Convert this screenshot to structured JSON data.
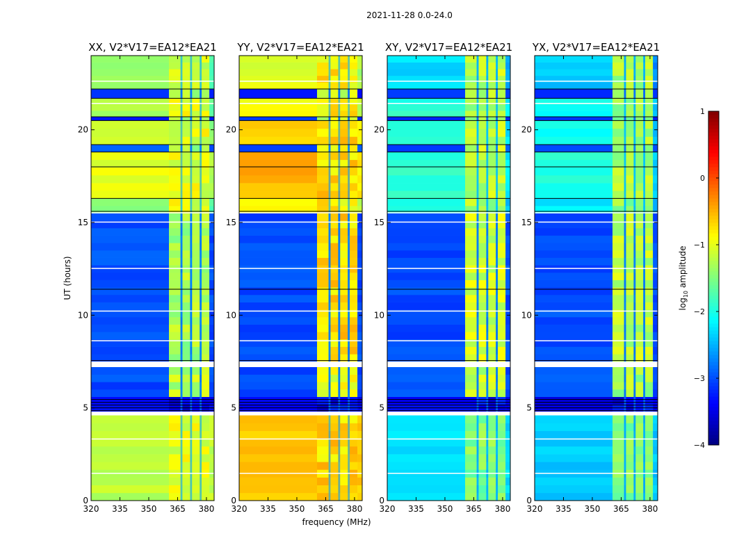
{
  "chart_data": {
    "type": "heatmap",
    "title": "2021-11-28 0.0-24.0",
    "xlabel": "frequency (MHz)",
    "ylabel": "UT (hours)",
    "xlim": [
      320,
      384
    ],
    "ylim": [
      0,
      24
    ],
    "xticks": [
      320,
      335,
      350,
      365,
      380
    ],
    "yticks": [
      0,
      5,
      10,
      15,
      20
    ],
    "colorbar": {
      "label": "log10 amplitude",
      "label_main": "log",
      "label_sub": "10",
      "label_rest": " amplitude",
      "range": [
        -4,
        1
      ],
      "ticks": [
        1,
        0,
        -1,
        -2,
        -3,
        -4
      ],
      "tick_labels": [
        "1",
        "0",
        "−1",
        "−2",
        "−3",
        "−4"
      ],
      "colormap": "jet"
    },
    "rfi_channels_mhz": [
      [
        360.5,
        366.5
      ],
      [
        367.5,
        371.5
      ],
      [
        372.5,
        376.5
      ],
      [
        377.5,
        381.5
      ]
    ],
    "time_segments_hours": [
      [
        0,
        4.6
      ],
      [
        4.8,
        5.6
      ],
      [
        5.6,
        7.2
      ],
      [
        7.5,
        15.5
      ],
      [
        15.5,
        16.3
      ],
      [
        16.3,
        18.8
      ],
      [
        18.8,
        19.2
      ],
      [
        19.2,
        20.5
      ],
      [
        20.5,
        20.7
      ],
      [
        20.7,
        21.7
      ],
      [
        21.7,
        22.2
      ],
      [
        22.2,
        24
      ]
    ],
    "white_gap_hours": [
      [
        4.6,
        4.8
      ],
      [
        7.2,
        7.5
      ],
      [
        1.45,
        1.5
      ],
      [
        3.3,
        3.35
      ],
      [
        8.6,
        8.65
      ],
      [
        10.2,
        10.25
      ],
      [
        12.5,
        12.55
      ],
      [
        15.0,
        15.05
      ],
      [
        15.5,
        15.55
      ],
      [
        21.4,
        21.45
      ],
      [
        22.6,
        22.65
      ]
    ],
    "black_line_hours": [
      4.85,
      5.0,
      5.15,
      5.3,
      5.45,
      7.55,
      11.4,
      15.6,
      16.3,
      18.0,
      18.8,
      19.2,
      20.5,
      20.7,
      21.7,
      22.2
    ],
    "panels": [
      {
        "title": "XX, V2*V17=EA12*EA21",
        "background_log_amp": [
          -1.2,
          -3.4,
          -3.0,
          -3.0,
          -1.4,
          -1.0,
          -3.0,
          -1.1,
          -3.2,
          -1.3,
          -3.2,
          -1.4
        ],
        "rfi_log_amp": [
          -1.0,
          -3.4,
          -1.2,
          -1.3,
          -1.0,
          -1.0,
          -1.3,
          -1.0,
          -1.3,
          -1.0,
          -1.3,
          -1.1
        ]
      },
      {
        "title": "YY, V2*V17=EA12*EA21",
        "background_log_amp": [
          -0.6,
          -3.4,
          -3.0,
          -3.0,
          -0.9,
          -0.5,
          -3.0,
          -0.6,
          -3.2,
          -0.9,
          -3.2,
          -1.0
        ],
        "rfi_log_amp": [
          -0.7,
          -3.4,
          -1.0,
          -0.7,
          -0.8,
          -0.7,
          -1.0,
          -0.7,
          -1.1,
          -0.8,
          -1.1,
          -0.8
        ]
      },
      {
        "title": "XY, V2*V17=EA12*EA21",
        "background_log_amp": [
          -2.3,
          -3.4,
          -3.0,
          -3.0,
          -2.1,
          -1.9,
          -3.0,
          -2.0,
          -3.2,
          -1.9,
          -3.2,
          -2.3
        ],
        "rfi_log_amp": [
          -1.5,
          -3.4,
          -1.2,
          -1.1,
          -1.3,
          -1.2,
          -1.2,
          -1.2,
          -1.3,
          -1.3,
          -1.3,
          -1.2
        ]
      },
      {
        "title": "YX, V2*V17=EA12*EA21",
        "background_log_amp": [
          -2.4,
          -3.4,
          -3.0,
          -3.0,
          -2.2,
          -2.0,
          -3.0,
          -2.1,
          -3.2,
          -2.1,
          -3.2,
          -2.4
        ],
        "rfi_log_amp": [
          -1.5,
          -3.4,
          -1.3,
          -1.2,
          -1.4,
          -1.3,
          -1.3,
          -1.3,
          -1.4,
          -1.4,
          -1.4,
          -1.3
        ]
      }
    ]
  }
}
